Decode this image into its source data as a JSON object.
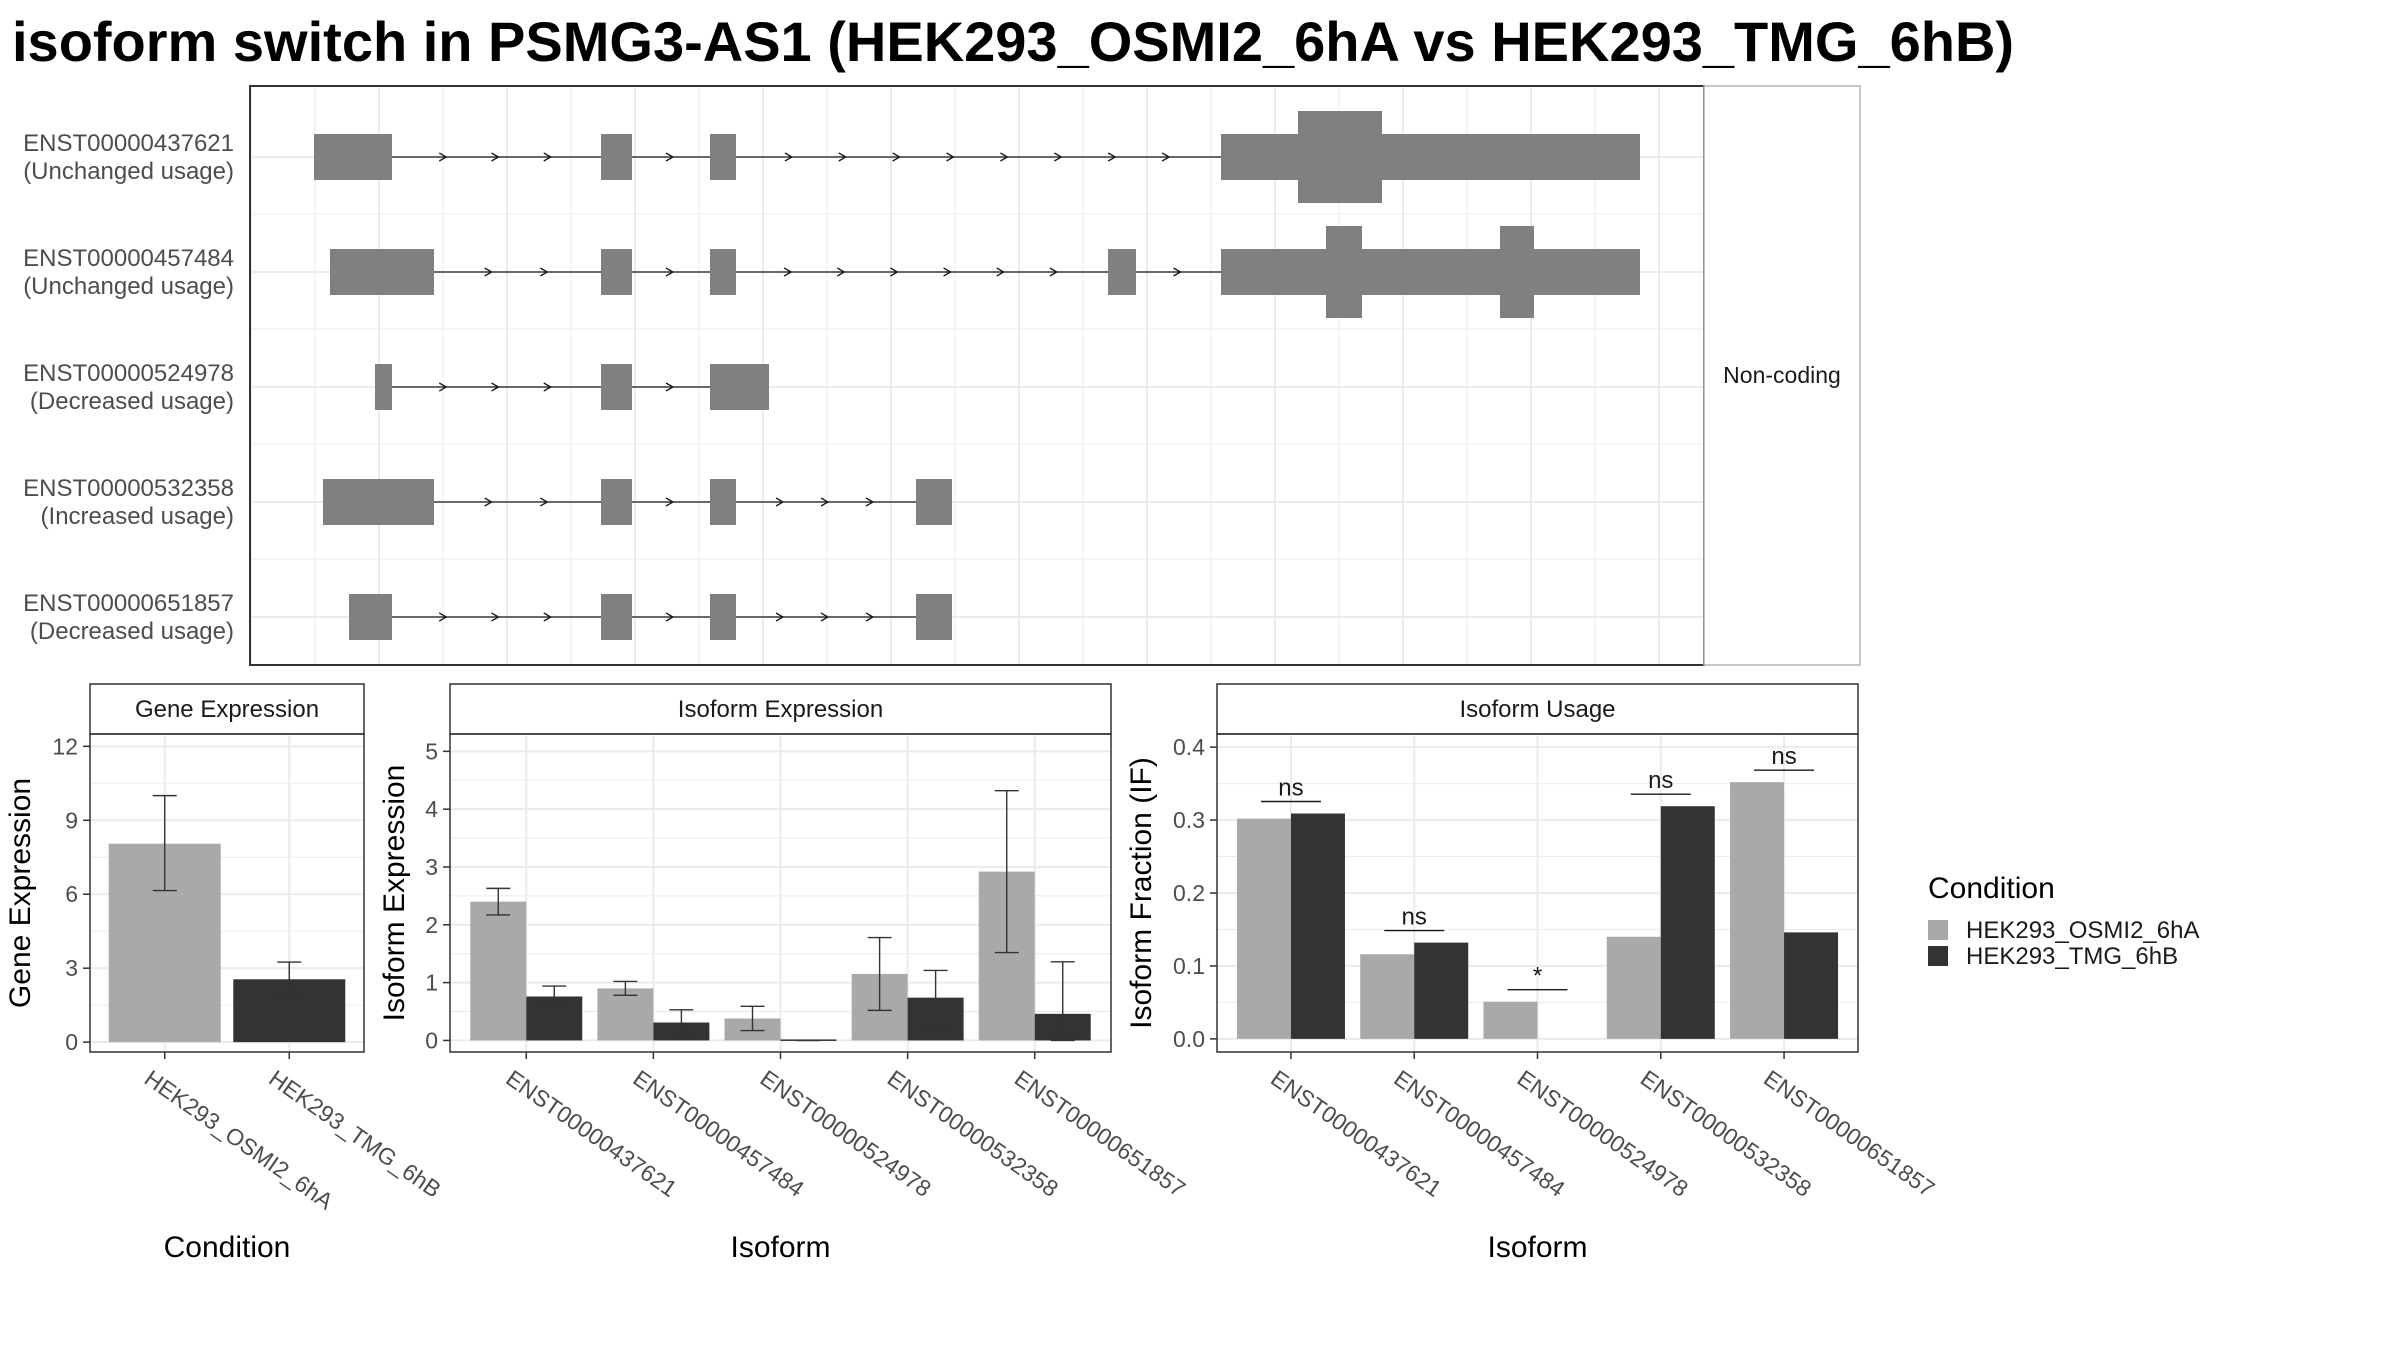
{
  "title": "isoform switch in PSMG3-AS1 (HEK293_OSMI2_6hA vs HEK293_TMG_6hB)",
  "colors": {
    "condition_a": "#a9a9a9",
    "condition_b": "#333333",
    "exon": "#808080",
    "grid": "#ebebeb",
    "frame": "#333333",
    "strip": "#ffffff"
  },
  "chart_data": [
    {
      "type": "gene_structure",
      "facet_label": "Non-coding",
      "transcripts": [
        {
          "id": "ENST00000437621",
          "usage": "(Unchanged usage)"
        },
        {
          "id": "ENST00000457484",
          "usage": "(Unchanged usage)"
        },
        {
          "id": "ENST00000524978",
          "usage": "(Decreased usage)"
        },
        {
          "id": "ENST00000532358",
          "usage": "(Increased usage)"
        },
        {
          "id": "ENST00000651857",
          "usage": "(Decreased usage)"
        }
      ]
    },
    {
      "type": "bar",
      "title": "Gene Expression",
      "xlabel": "Condition",
      "ylabel": "Gene Expression",
      "categories": [
        "HEK293_OSMI2_6hA",
        "HEK293_TMG_6hB"
      ],
      "values": [
        8.05,
        2.55
      ],
      "error_low": [
        6.15,
        1.85
      ],
      "error_high": [
        10.0,
        3.25
      ],
      "ylim": [
        -0.4,
        12.5
      ],
      "yticks": [
        0,
        3,
        6,
        9,
        12
      ]
    },
    {
      "type": "bar",
      "title": "Isoform Expression",
      "xlabel": "Isoform",
      "ylabel": "Isoform Expression",
      "categories": [
        "ENST00000437621",
        "ENST00000457484",
        "ENST00000524978",
        "ENST00000532358",
        "ENST00000651857"
      ],
      "series": [
        {
          "name": "HEK293_OSMI2_6hA",
          "values": [
            2.4,
            0.9,
            0.38,
            1.15,
            2.92
          ],
          "error_low": [
            2.17,
            0.78,
            0.17,
            0.52,
            1.52
          ],
          "error_high": [
            2.63,
            1.02,
            0.59,
            1.78,
            4.32
          ]
        },
        {
          "name": "HEK293_TMG_6hB",
          "values": [
            0.76,
            0.31,
            0.0,
            0.74,
            0.46
          ],
          "error_low": [
            0.58,
            0.09,
            0.0,
            0.27,
            0.0
          ],
          "error_high": [
            0.94,
            0.53,
            0.0,
            1.21,
            1.36
          ]
        }
      ],
      "ylim": [
        -0.2,
        5.3
      ],
      "yticks": [
        0,
        1,
        2,
        3,
        4,
        5
      ]
    },
    {
      "type": "bar",
      "title": "Isoform Usage",
      "xlabel": "Isoform",
      "ylabel": "Isoform Fraction (IF)",
      "categories": [
        "ENST00000437621",
        "ENST00000457484",
        "ENST00000524978",
        "ENST00000532358",
        "ENST00000651857"
      ],
      "series": [
        {
          "name": "HEK293_OSMI2_6hA",
          "values": [
            0.302,
            0.116,
            0.051,
            0.14,
            0.352
          ]
        },
        {
          "name": "HEK293_TMG_6hB",
          "values": [
            0.309,
            0.132,
            0.0,
            0.319,
            0.146
          ]
        }
      ],
      "significance": [
        "ns",
        "ns",
        "*",
        "ns",
        "ns"
      ],
      "ylim": [
        -0.018,
        0.418
      ],
      "yticks": [
        0.0,
        0.1,
        0.2,
        0.3,
        0.4
      ],
      "ytick_labels": [
        "0.0",
        "0.1",
        "0.2",
        "0.3",
        "0.4"
      ]
    }
  ],
  "legend": {
    "title": "Condition",
    "items": [
      {
        "label": "HEK293_OSMI2_6hA",
        "color": "#a9a9a9"
      },
      {
        "label": "HEK293_TMG_6hB",
        "color": "#333333"
      }
    ]
  }
}
